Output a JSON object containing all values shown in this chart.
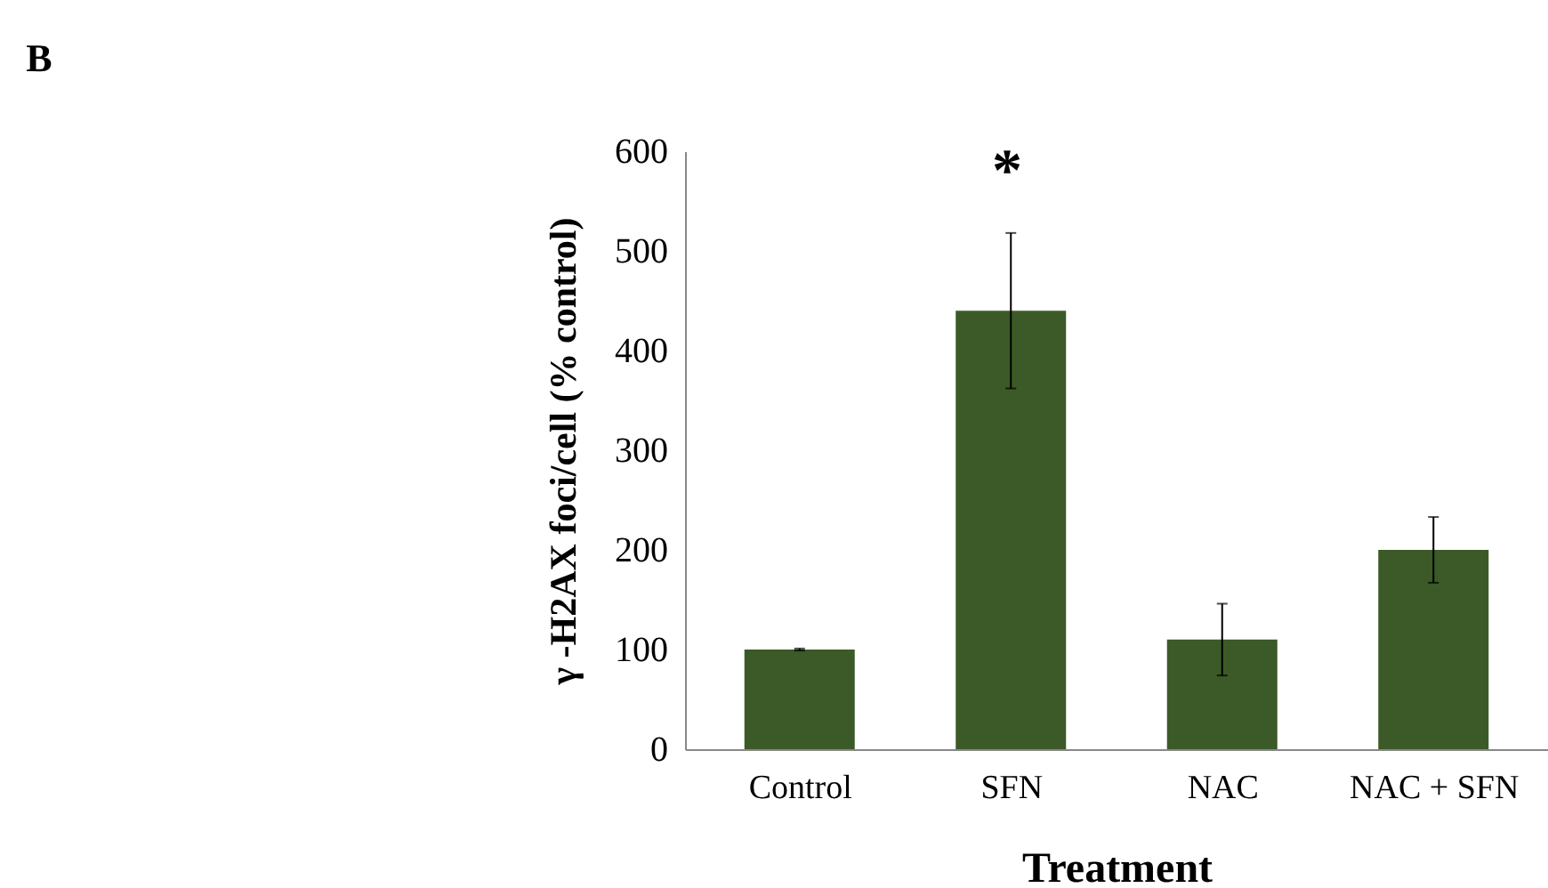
{
  "chart_data": {
    "type": "bar",
    "xlabel": "Treatment",
    "ylabel": "γ -H2AX foci/cell (% control)",
    "categories": [
      "Control",
      "SFN",
      "NAC",
      "NAC + SFN"
    ],
    "values": [
      100,
      440,
      110,
      200
    ],
    "errors": [
      1,
      78,
      36,
      33
    ],
    "color": "#3b5a27",
    "ylim": [
      0,
      600
    ],
    "yticks": [
      0,
      100,
      200,
      300,
      400,
      500,
      600
    ],
    "grid": false,
    "annotations": [
      "B",
      "*"
    ]
  }
}
